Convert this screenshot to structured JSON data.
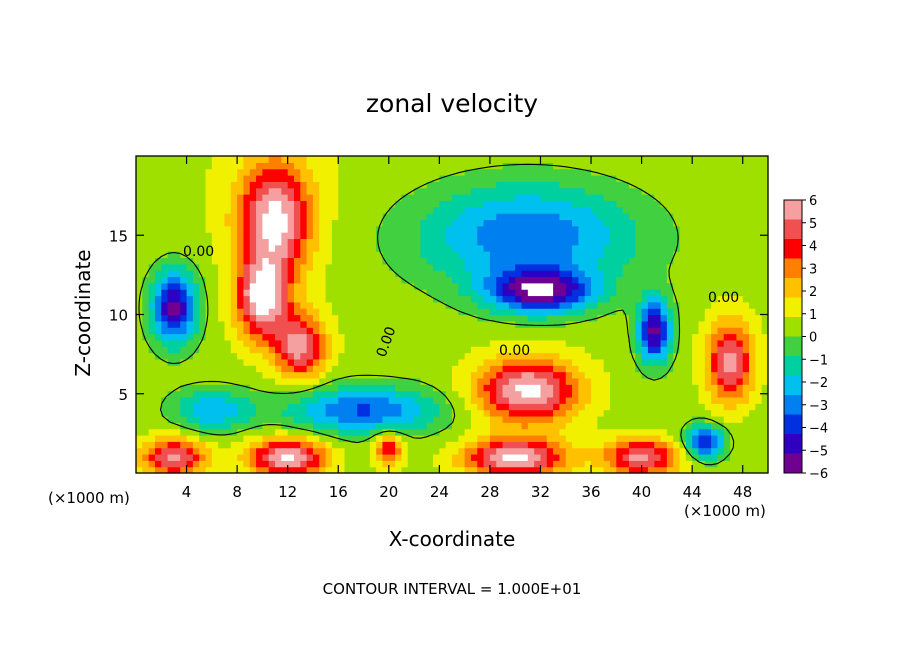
{
  "chart_data": {
    "type": "heatmap",
    "title": "zonal velocity",
    "xlabel": "X-coordinate",
    "ylabel": "Z-coordinate",
    "x_unit_label": "(×1000 m)",
    "x_unit_label_right": "(×1000 m)",
    "xlim": [
      0,
      50
    ],
    "ylim": [
      0,
      20
    ],
    "xticks": [
      4,
      8,
      12,
      16,
      20,
      24,
      28,
      32,
      36,
      40,
      44,
      48
    ],
    "xtick_labels": [
      "4",
      "8",
      "12",
      "16",
      "20",
      "24",
      "28",
      "32",
      "36",
      "40",
      "44",
      "48"
    ],
    "yticks": [
      5,
      10,
      15
    ],
    "ytick_labels": [
      "5",
      "10",
      "15"
    ],
    "colorbar": {
      "min": -6,
      "max": 6,
      "ticks": [
        6,
        5,
        4,
        3,
        2,
        1,
        0,
        -1,
        -2,
        -3,
        -4,
        -5,
        -6
      ],
      "tick_labels": [
        "6",
        "5",
        "4",
        "3",
        "2",
        "1",
        "0",
        "−1",
        "−2",
        "−3",
        "−4",
        "−5",
        "−6"
      ],
      "colors": [
        "#f4a0a0",
        "#f05050",
        "#ff0000",
        "#ff8000",
        "#ffc000",
        "#f0f000",
        "#a0e000",
        "#40d040",
        "#00d0a0",
        "#00c0f0",
        "#0080f0",
        "#0030e0",
        "#3000c0",
        "#700090"
      ]
    },
    "contour_labels": [
      "0.00",
      "0.00",
      "0.00",
      "0.00"
    ],
    "footer": "CONTOUR INTERVAL = 1.000E+01",
    "features": [
      {
        "x": 11,
        "z": 16,
        "value": 6,
        "sx": 2.8,
        "sz": 3.5
      },
      {
        "x": 10,
        "z": 11,
        "value": 6,
        "sx": 2.0,
        "sz": 2.5
      },
      {
        "x": 13,
        "z": 8,
        "value": 5,
        "sx": 2.0,
        "sz": 2.0
      },
      {
        "x": 3,
        "z": 10.5,
        "value": -6,
        "sx": 1.8,
        "sz": 2.3
      },
      {
        "x": 31,
        "z": 5.2,
        "value": 6,
        "sx": 4.0,
        "sz": 2.0
      },
      {
        "x": 32,
        "z": 11.5,
        "value": -6,
        "sx": 4.0,
        "sz": 1.3
      },
      {
        "x": 31,
        "z": 15,
        "value": -4,
        "sx": 9.0,
        "sz": 3.5
      },
      {
        "x": 41,
        "z": 9,
        "value": -6,
        "sx": 1.3,
        "sz": 2.0
      },
      {
        "x": 47,
        "z": 7,
        "value": 5,
        "sx": 1.8,
        "sz": 2.5
      },
      {
        "x": 3,
        "z": 1,
        "value": 5,
        "sx": 2.5,
        "sz": 1.2
      },
      {
        "x": 12,
        "z": 1,
        "value": 6,
        "sx": 3.0,
        "sz": 1.2
      },
      {
        "x": 30,
        "z": 1,
        "value": 6,
        "sx": 4.0,
        "sz": 1.2
      },
      {
        "x": 40,
        "z": 1,
        "value": 5,
        "sx": 3.0,
        "sz": 1.2
      },
      {
        "x": 20,
        "z": 1.5,
        "value": 4,
        "sx": 1.2,
        "sz": 1.0
      },
      {
        "x": 45,
        "z": 2,
        "value": -5,
        "sx": 1.5,
        "sz": 1.0
      },
      {
        "x": 18,
        "z": 4,
        "value": -4,
        "sx": 6.0,
        "sz": 1.5
      },
      {
        "x": 6,
        "z": 4,
        "value": -3,
        "sx": 3.0,
        "sz": 1.3
      }
    ]
  }
}
